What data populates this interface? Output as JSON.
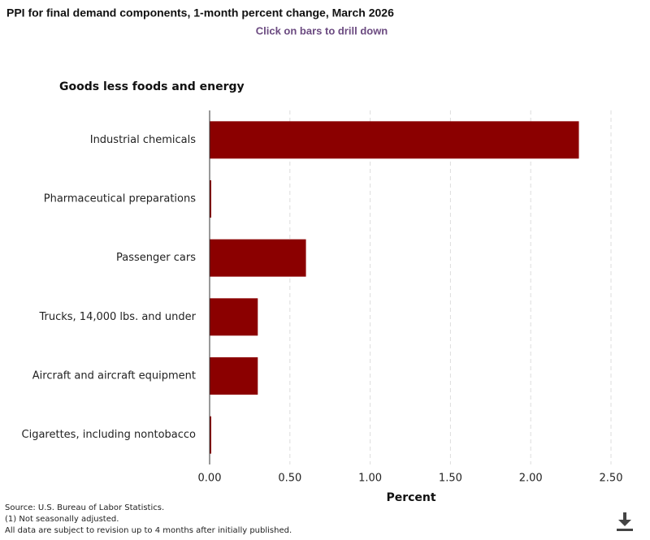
{
  "chart_data": {
    "type": "hbar",
    "title": "PPI for final demand components, 1-month percent change, March 2026",
    "subtitle": "Click on bars to drill down",
    "group_label": "Goods less foods and energy",
    "categories": [
      "Industrial chemicals",
      "Pharmaceutical preparations",
      "Passenger cars",
      "Trucks, 14,000 lbs. and under",
      "Aircraft and aircraft equipment",
      "Cigarettes, including nontobacco"
    ],
    "values": [
      2.3,
      0.01,
      0.6,
      0.3,
      0.3,
      0.01
    ],
    "color": "#8b0000",
    "x_label": "Percent",
    "xlim": [
      0,
      2.5
    ],
    "xticks": [
      {
        "value": 0,
        "label": "0.00"
      },
      {
        "value": 0.5,
        "label": "0.50"
      },
      {
        "value": 1,
        "label": "1.00"
      },
      {
        "value": 1.5,
        "label": "1.50"
      },
      {
        "value": 2,
        "label": "2.00"
      },
      {
        "value": 2.5,
        "label": "2.50"
      }
    ],
    "grid": true,
    "notes": [
      "Source: U.S. Bureau of Labor Statistics.",
      "(1) Not seasonally adjusted.",
      "All data are subject to revision up to 4 months after initially published."
    ]
  }
}
